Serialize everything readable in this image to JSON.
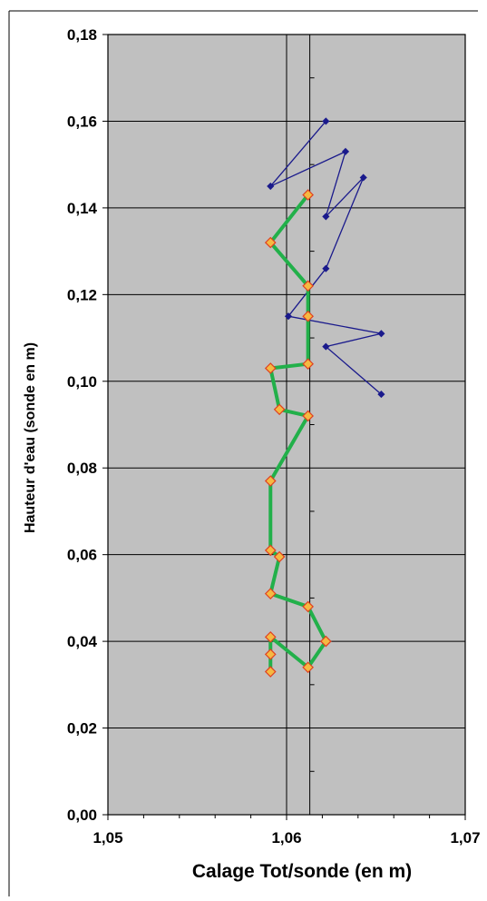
{
  "chart_data": {
    "type": "scatter",
    "xlabel": "Calage Tot/sonde (en m)",
    "ylabel": "Hauteur d'eau (sonde en m)",
    "xlim": [
      1.05,
      1.07
    ],
    "ylim": [
      0.0,
      0.18
    ],
    "x_ticks": [
      "1,05",
      "1,06",
      "1,07"
    ],
    "x_tick_values": [
      1.05,
      1.06,
      1.07
    ],
    "y_ticks": [
      "0,00",
      "0,02",
      "0,04",
      "0,06",
      "0,08",
      "0,10",
      "0,12",
      "0,14",
      "0,16",
      "0,18"
    ],
    "y_tick_values": [
      0.0,
      0.02,
      0.04,
      0.06,
      0.08,
      0.1,
      0.12,
      0.14,
      0.16,
      0.18
    ],
    "grid": true,
    "plot_background": "#c0c0c0",
    "vertical_reference_lines": [
      1.06,
      1.0613
    ],
    "series": [
      {
        "color": "#1a1a8c",
        "marker": "small-diamond",
        "points": [
          [
            1.0622,
            0.16
          ],
          [
            1.0591,
            0.145
          ],
          [
            1.0633,
            0.153
          ],
          [
            1.0622,
            0.138
          ],
          [
            1.0643,
            0.147
          ],
          [
            1.0622,
            0.126
          ],
          [
            1.0601,
            0.115
          ],
          [
            1.0653,
            0.111
          ],
          [
            1.0622,
            0.108
          ],
          [
            1.0653,
            0.097
          ]
        ]
      },
      {
        "color": "#22b04a",
        "marker": "diamond",
        "marker_fill": "#f5b942",
        "marker_edge": "#e04020",
        "points": [
          [
            1.0612,
            0.143
          ],
          [
            1.0591,
            0.132
          ],
          [
            1.0612,
            0.122
          ],
          [
            1.0612,
            0.115
          ],
          [
            1.0612,
            0.104
          ],
          [
            1.0591,
            0.103
          ],
          [
            1.0596,
            0.0935
          ],
          [
            1.0612,
            0.092
          ],
          [
            1.0591,
            0.077
          ],
          [
            1.0591,
            0.061
          ],
          [
            1.0596,
            0.0595
          ],
          [
            1.0591,
            0.051
          ],
          [
            1.0612,
            0.048
          ],
          [
            1.0622,
            0.04
          ],
          [
            1.0612,
            0.034
          ],
          [
            1.0591,
            0.041
          ],
          [
            1.0591,
            0.037
          ],
          [
            1.0591,
            0.033
          ]
        ]
      }
    ]
  }
}
